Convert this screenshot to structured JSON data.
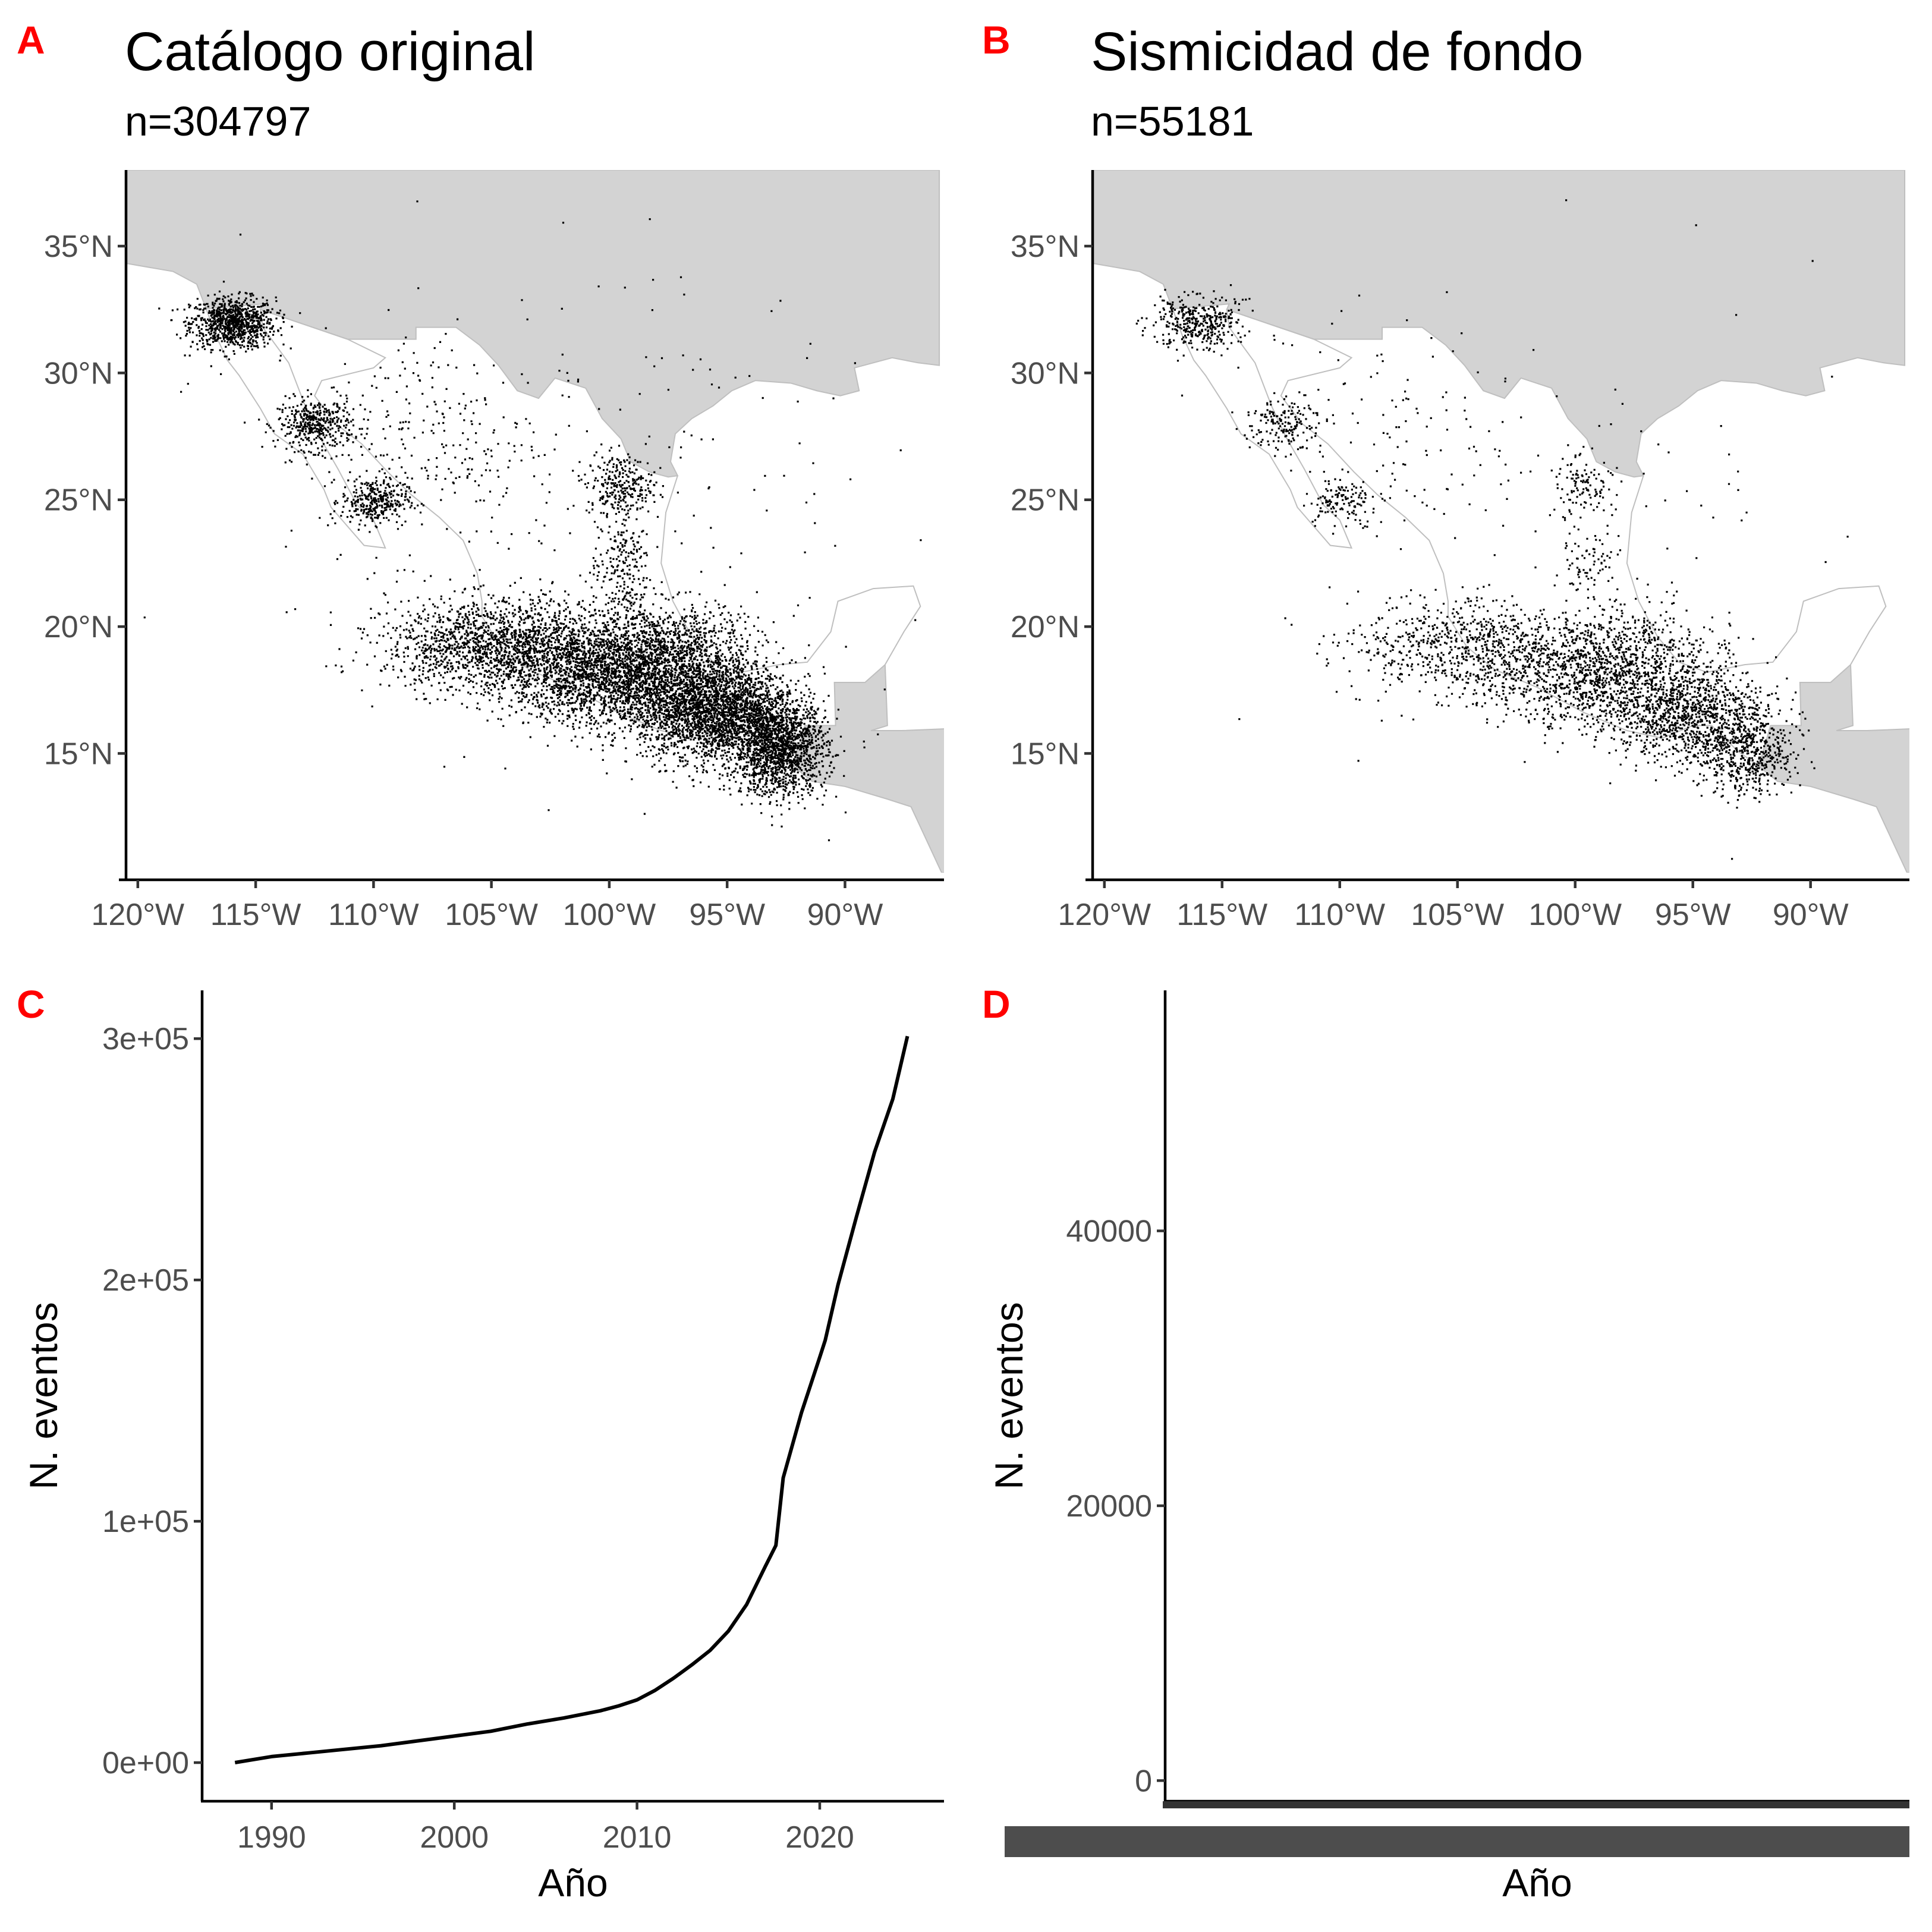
{
  "panels": {
    "A": {
      "tag": "A",
      "title": "Catálogo original",
      "subtitle": "n=304797"
    },
    "B": {
      "tag": "B",
      "title": "Sismicidad de fondo",
      "subtitle": "n=55181"
    },
    "C": {
      "tag": "C"
    },
    "D": {
      "tag": "D"
    }
  },
  "colors": {
    "land": "#d3d3d3",
    "coast": "#bfbfbf",
    "points": "#000000",
    "tag": "#ff0000",
    "tick_text": "#4d4d4d"
  },
  "chart_data": [
    {
      "panel": "A",
      "type": "scatter",
      "description_ticks": true,
      "x_ticks": [
        -120,
        -115,
        -110,
        -105,
        -100,
        -95,
        -90
      ],
      "x_tick_labels": [
        "120°W",
        "115°W",
        "110°W",
        "105°W",
        "100°W",
        "95°W",
        "90°W"
      ],
      "y_ticks": [
        15,
        20,
        25,
        30,
        35
      ],
      "y_tick_labels": [
        "15°N",
        "20°N",
        "25°N",
        "30°N",
        "35°N"
      ],
      "xlim": [
        -120.5,
        -85.8
      ],
      "ylim": [
        10.3,
        38
      ],
      "grid": false,
      "n": 304797
    },
    {
      "panel": "B",
      "type": "scatter",
      "x_ticks": [
        -120,
        -115,
        -110,
        -105,
        -100,
        -95,
        -90
      ],
      "x_tick_labels": [
        "120°W",
        "115°W",
        "110°W",
        "105°W",
        "100°W",
        "95°W",
        "90°W"
      ],
      "y_ticks": [
        15,
        20,
        25,
        30,
        35
      ],
      "y_tick_labels": [
        "15°N",
        "20°N",
        "25°N",
        "30°N",
        "35°N"
      ],
      "xlim": [
        -120.5,
        -85.8
      ],
      "ylim": [
        10.3,
        38
      ],
      "grid": false,
      "n": 55181
    },
    {
      "panel": "C",
      "type": "line",
      "xlabel": "Año",
      "ylabel": "N. eventos",
      "x_ticks": [
        1990,
        2000,
        2010,
        2020
      ],
      "x_tick_labels": [
        "1990",
        "2000",
        "2010",
        "2020"
      ],
      "y_ticks": [
        0,
        100000,
        200000,
        300000
      ],
      "y_tick_labels": [
        "0e+00",
        "1e+05",
        "2e+05",
        "3e+05"
      ],
      "xlim": [
        1986.2,
        2026.8
      ],
      "ylim": [
        -16000,
        320000
      ],
      "x": [
        1988,
        1990,
        1992,
        1994,
        1996,
        1998,
        2000,
        2002,
        2004,
        2006,
        2008,
        2009,
        2010,
        2011,
        2012,
        2013,
        2014,
        2015,
        2016,
        2017,
        2017.6,
        2018,
        2019,
        2020,
        2020.3,
        2021,
        2022,
        2023,
        2024,
        2024.8
      ],
      "values": [
        0,
        2500,
        4000,
        5500,
        7000,
        9000,
        11000,
        13000,
        16000,
        18500,
        21500,
        23500,
        26000,
        30000,
        35000,
        40500,
        46500,
        54500,
        65500,
        81000,
        90000,
        118000,
        145000,
        168000,
        175000,
        198000,
        226000,
        253000,
        275000,
        301000
      ],
      "grid": false
    },
    {
      "panel": "D",
      "type": "line",
      "xlabel": "Año",
      "ylabel": "N. eventos",
      "y_ticks": [
        0,
        20000,
        40000
      ],
      "y_tick_labels": [
        "0",
        "20000",
        "40000"
      ],
      "ylim": [
        -1500,
        57500
      ],
      "x_tick_labels_overlapping": true,
      "x": [],
      "values": [],
      "grid": false
    }
  ]
}
